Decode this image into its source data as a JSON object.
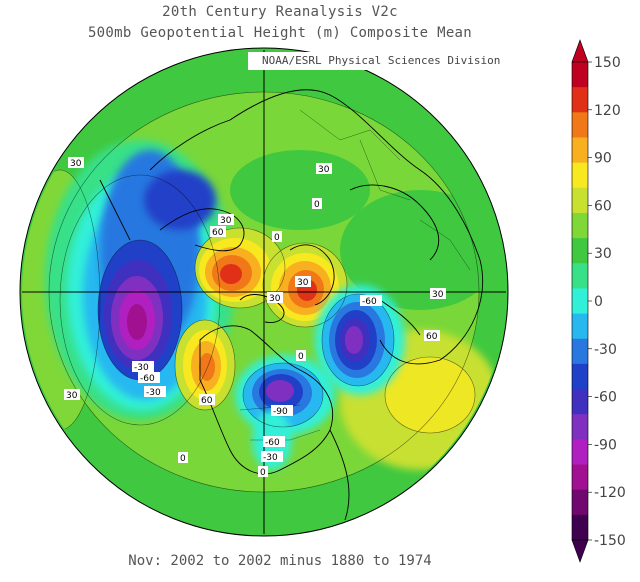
{
  "title": "20th Century Reanalysis V2c",
  "subtitle": "500mb Geopotential Height (m) Composite Mean",
  "credit": "NOAA/ESRL Physical Sciences Division",
  "footer": "Nov: 2002 to 2002 minus 1880 to 1974",
  "colorbar": {
    "ticks": [
      "150",
      "120",
      "90",
      "60",
      "30",
      "0",
      "-30",
      "-60",
      "-90",
      "-120",
      "-150"
    ],
    "colors": [
      "#c00020",
      "#e03018",
      "#f07818",
      "#f8b020",
      "#f8e820",
      "#c8e030",
      "#80d838",
      "#40c840",
      "#38e088",
      "#30f0d8",
      "#28b8f0",
      "#2878e0",
      "#2040c8",
      "#4030c0",
      "#8030c0",
      "#b020c0",
      "#a01090",
      "#700870",
      "#400050"
    ]
  },
  "map_labels": [
    {
      "id": "l30a",
      "text": "30"
    },
    {
      "id": "l30b",
      "text": "30"
    },
    {
      "id": "l60a",
      "text": "60"
    },
    {
      "id": "l30c",
      "text": "30"
    },
    {
      "id": "l0a",
      "text": "0"
    },
    {
      "id": "l0b",
      "text": "0"
    },
    {
      "id": "l30d",
      "text": "30"
    },
    {
      "id": "l30e",
      "text": "30"
    },
    {
      "id": "lm60a",
      "text": "-60"
    },
    {
      "id": "l30f",
      "text": "30"
    },
    {
      "id": "l60b",
      "text": "60"
    },
    {
      "id": "l30g",
      "text": "30"
    },
    {
      "id": "lm30a",
      "text": "-30"
    },
    {
      "id": "lm60b",
      "text": "-60"
    },
    {
      "id": "lm30b",
      "text": "-30"
    },
    {
      "id": "l60c",
      "text": "60"
    },
    {
      "id": "lm90",
      "text": "-90"
    },
    {
      "id": "l0c",
      "text": "0"
    },
    {
      "id": "lm60c",
      "text": "-60"
    },
    {
      "id": "lm30c",
      "text": "-30"
    },
    {
      "id": "l0d",
      "text": "0"
    },
    {
      "id": "l0e",
      "text": "0"
    }
  ]
}
